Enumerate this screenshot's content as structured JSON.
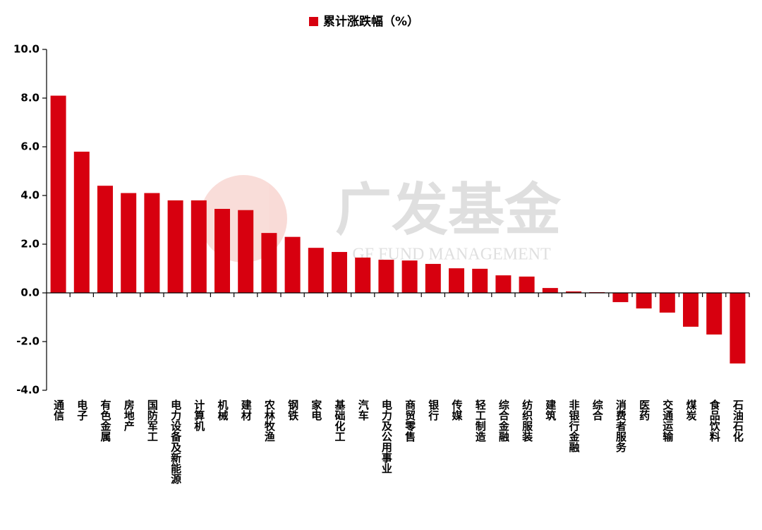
{
  "chart_data": {
    "type": "bar",
    "watermark": {
      "title": "广发基金",
      "subtitle": "GF FUND MANAGEMENT"
    },
    "categories": [
      "通信",
      "电子",
      "有色金属",
      "房地产",
      "国防军工",
      "电力设备及新能源",
      "计算机",
      "机械",
      "建材",
      "农林牧渔",
      "钢铁",
      "家电",
      "基础化工",
      "汽车",
      "电力及公用事业",
      "商贸零售",
      "银行",
      "传媒",
      "轻工制造",
      "综合金融",
      "纺织服装",
      "建筑",
      "非银行金融",
      "综合",
      "消费者服务",
      "医药",
      "交通运输",
      "煤炭",
      "食品饮料",
      "石油石化"
    ],
    "series": [
      {
        "name": "累计涨跌幅（%）",
        "color": "#d7000f",
        "values": [
          8.1,
          5.8,
          4.4,
          4.1,
          4.1,
          3.8,
          3.8,
          3.45,
          3.4,
          2.46,
          2.3,
          1.85,
          1.68,
          1.45,
          1.36,
          1.33,
          1.19,
          1.01,
          0.99,
          0.72,
          0.67,
          0.2,
          0.06,
          0.03,
          -0.38,
          -0.64,
          -0.81,
          -1.39,
          -1.71,
          -2.9
        ]
      }
    ],
    "ylim": [
      -4,
      10
    ],
    "yticks": [
      {
        "value": -4,
        "label": "-4.0"
      },
      {
        "value": -2,
        "label": "-2.0"
      },
      {
        "value": 0,
        "label": "0.0"
      },
      {
        "value": 2,
        "label": "2.0"
      },
      {
        "value": 4,
        "label": "4.0"
      },
      {
        "value": 6,
        "label": "6.0"
      },
      {
        "value": 8,
        "label": "8.0"
      },
      {
        "value": 10,
        "label": "10.0"
      }
    ],
    "legend": "top"
  }
}
